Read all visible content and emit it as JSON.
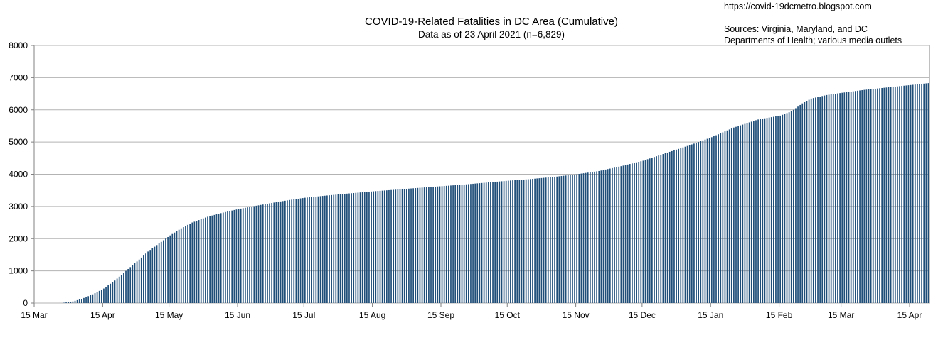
{
  "header": {
    "title": "COVID-19-Related Fatalities in DC Area (Cumulative)",
    "subtitle": "Data as of 23 April 2021 (n=6,829)",
    "url": "https://covid-19dcmetro.blogspot.com",
    "sources_line1": "Sources: Virginia, Maryland, and DC",
    "sources_line2": "Departments of Health; various media outlets"
  },
  "colors": {
    "bar": "#1f4e79",
    "grid": "#b3b3b3",
    "axis": "#808080"
  },
  "chart_data": {
    "type": "bar",
    "title": "COVID-19-Related Fatalities in DC Area (Cumulative)",
    "subtitle": "Data as of 23 April 2021 (n=6,829)",
    "xlabel": "",
    "ylabel": "",
    "ylim": [
      0,
      8000
    ],
    "yticks": [
      "0",
      "1000",
      "2000",
      "3000",
      "4000",
      "5000",
      "6000",
      "7000",
      "8000"
    ],
    "xlim": [
      "2020-03-15",
      "2021-04-23"
    ],
    "xticks": [
      {
        "date": "2020-03-15",
        "label": "15 Mar"
      },
      {
        "date": "2020-04-15",
        "label": "15 Apr"
      },
      {
        "date": "2020-05-15",
        "label": "15 May"
      },
      {
        "date": "2020-06-15",
        "label": "15 Jun"
      },
      {
        "date": "2020-07-15",
        "label": "15 Jul"
      },
      {
        "date": "2020-08-15",
        "label": "15 Aug"
      },
      {
        "date": "2020-09-15",
        "label": "15 Sep"
      },
      {
        "date": "2020-10-15",
        "label": "15 Oct"
      },
      {
        "date": "2020-11-15",
        "label": "15 Nov"
      },
      {
        "date": "2020-12-15",
        "label": "15 Dec"
      },
      {
        "date": "2021-01-15",
        "label": "15 Jan"
      },
      {
        "date": "2021-02-15",
        "label": "15 Feb"
      },
      {
        "date": "2021-03-15",
        "label": "15 Mar"
      },
      {
        "date": "2021-04-15",
        "label": "15 Apr"
      }
    ],
    "grid": true,
    "legend": "none",
    "series": [
      {
        "values_by_date": [
          [
            "2020-03-15",
            0
          ],
          [
            "2020-03-27",
            0
          ],
          [
            "2020-03-28",
            10
          ],
          [
            "2020-04-01",
            50
          ],
          [
            "2020-04-05",
            130
          ],
          [
            "2020-04-10",
            270
          ],
          [
            "2020-04-15",
            450
          ],
          [
            "2020-04-20",
            700
          ],
          [
            "2020-04-25",
            1000
          ],
          [
            "2020-05-01",
            1350
          ],
          [
            "2020-05-05",
            1600
          ],
          [
            "2020-05-10",
            1850
          ],
          [
            "2020-05-15",
            2100
          ],
          [
            "2020-05-20",
            2320
          ],
          [
            "2020-05-25",
            2500
          ],
          [
            "2020-06-01",
            2680
          ],
          [
            "2020-06-08",
            2810
          ],
          [
            "2020-06-15",
            2920
          ],
          [
            "2020-06-22",
            3010
          ],
          [
            "2020-07-01",
            3120
          ],
          [
            "2020-07-08",
            3200
          ],
          [
            "2020-07-15",
            3270
          ],
          [
            "2020-07-25",
            3340
          ],
          [
            "2020-08-05",
            3410
          ],
          [
            "2020-08-15",
            3470
          ],
          [
            "2020-08-25",
            3520
          ],
          [
            "2020-09-05",
            3580
          ],
          [
            "2020-09-15",
            3630
          ],
          [
            "2020-09-25",
            3680
          ],
          [
            "2020-10-05",
            3740
          ],
          [
            "2020-10-15",
            3800
          ],
          [
            "2020-10-25",
            3850
          ],
          [
            "2020-11-05",
            3920
          ],
          [
            "2020-11-15",
            4000
          ],
          [
            "2020-11-25",
            4100
          ],
          [
            "2020-12-05",
            4250
          ],
          [
            "2020-12-15",
            4420
          ],
          [
            "2020-12-25",
            4650
          ],
          [
            "2021-01-05",
            4900
          ],
          [
            "2021-01-15",
            5150
          ],
          [
            "2021-01-25",
            5450
          ],
          [
            "2021-02-05",
            5700
          ],
          [
            "2021-02-15",
            5820
          ],
          [
            "2021-02-20",
            5950
          ],
          [
            "2021-02-25",
            6200
          ],
          [
            "2021-03-01",
            6350
          ],
          [
            "2021-03-08",
            6460
          ],
          [
            "2021-03-15",
            6530
          ],
          [
            "2021-03-25",
            6620
          ],
          [
            "2021-04-05",
            6700
          ],
          [
            "2021-04-15",
            6770
          ],
          [
            "2021-04-23",
            6829
          ]
        ]
      }
    ]
  }
}
